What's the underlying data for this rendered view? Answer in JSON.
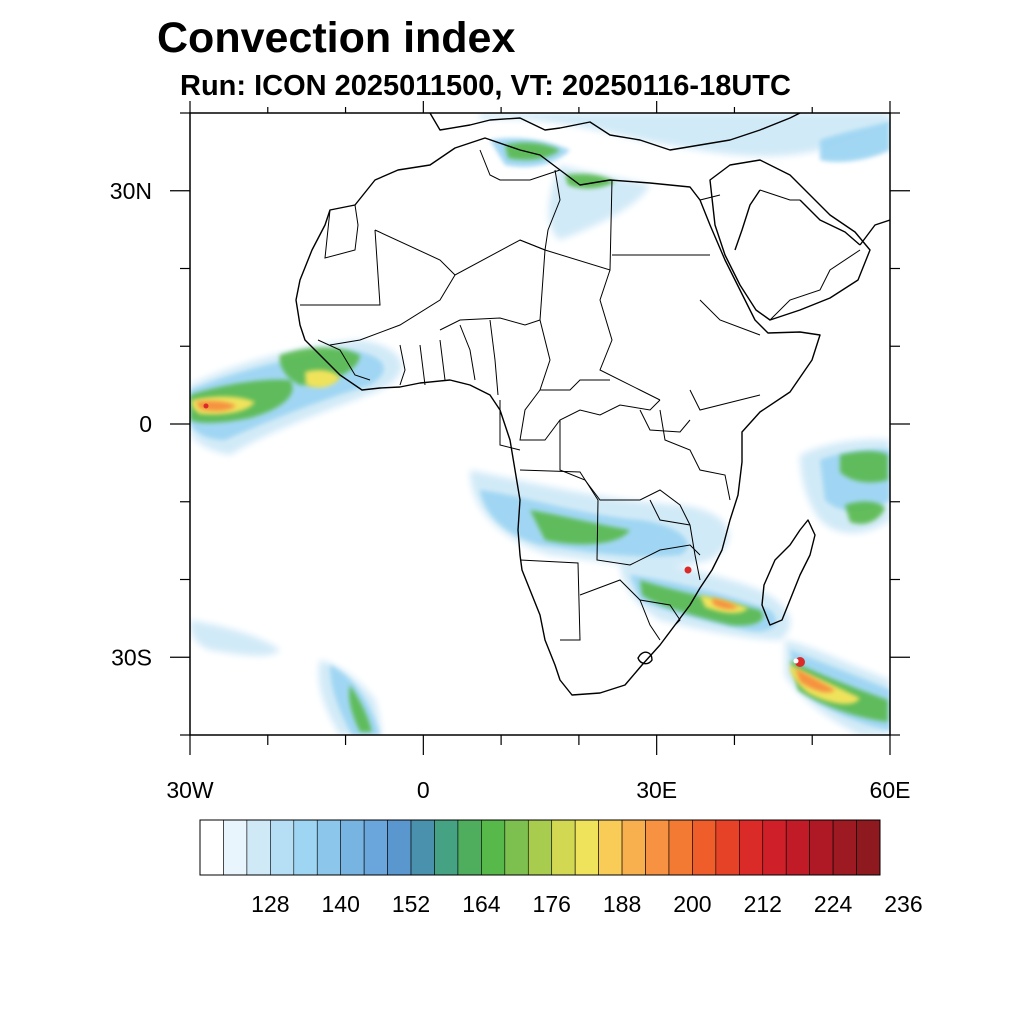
{
  "title": "Convection index",
  "subtitle": "Run: ICON 2025011500,  VT: 20250116-18UTC",
  "map": {
    "extent": {
      "lon": [
        -30,
        60
      ],
      "lat": [
        -40,
        40
      ]
    },
    "lat_ticks": [
      {
        "value": 30,
        "label": "30N"
      },
      {
        "value": 0,
        "label": "0"
      },
      {
        "value": -30,
        "label": "30S"
      }
    ],
    "lon_ticks": [
      {
        "value": -30,
        "label": "30W"
      },
      {
        "value": 0,
        "label": "0"
      },
      {
        "value": 30,
        "label": "30E"
      },
      {
        "value": 60,
        "label": "60E"
      }
    ]
  },
  "colorbar": {
    "colors": [
      "#ffffff",
      "#e8f5fc",
      "#cfe9f7",
      "#b6def4",
      "#9ed5f3",
      "#8cc6ea",
      "#78b4e1",
      "#6aa6db",
      "#5b97cf",
      "#4a91ad",
      "#45a383",
      "#4fae5e",
      "#58b94b",
      "#7ec04f",
      "#a8cc4e",
      "#d2d852",
      "#f0e35c",
      "#f8cc57",
      "#f8b04f",
      "#f69241",
      "#f37a33",
      "#ee5d2a",
      "#e54228",
      "#db2b29",
      "#cf2029",
      "#c01b27",
      "#ae1925",
      "#9e1a22",
      "#8e1a1f"
    ],
    "labels": [
      "128",
      "140",
      "152",
      "164",
      "176",
      "188",
      "200",
      "212",
      "224",
      "236"
    ]
  }
}
